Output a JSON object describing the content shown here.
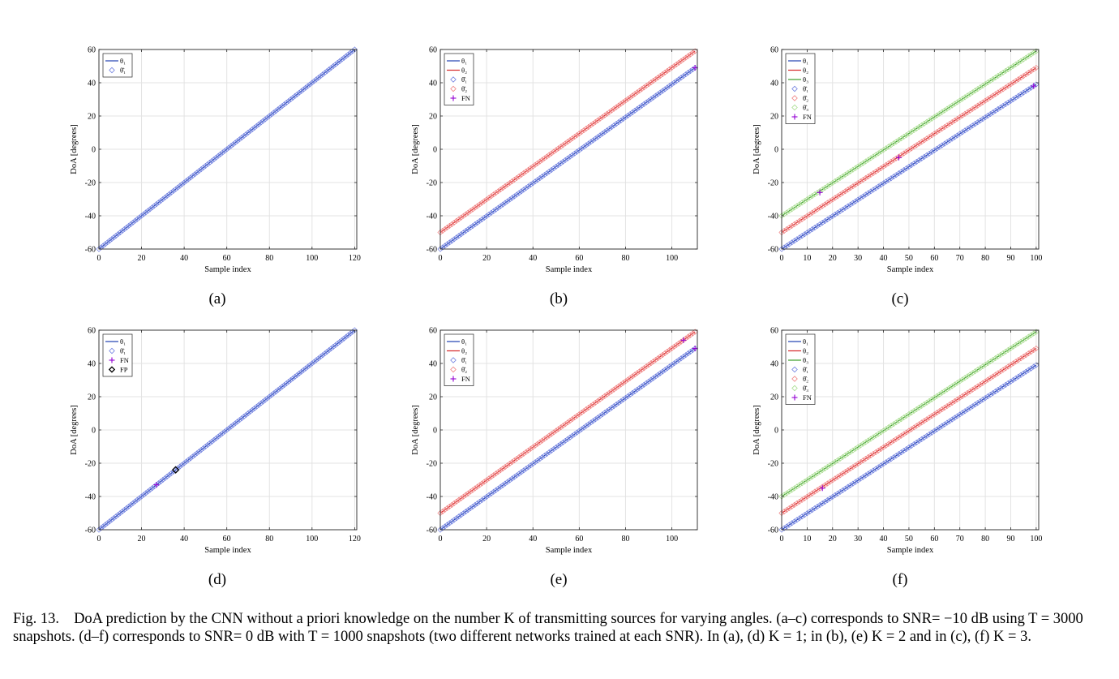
{
  "figure": {
    "caption_label": "Fig. 13.",
    "caption_text": "DoA prediction by the CNN without a priori knowledge on the number K of transmitting sources for varying angles. (a–c) corresponds to SNR= −10 dB using T = 3000 snapshots. (d–f) corresponds to SNR= 0 dB with T = 1000 snapshots (two different networks trained at each SNR). In (a), (d) K = 1; in (b), (e) K = 2 and in (c), (f) K = 3."
  },
  "colors": {
    "theta1": "#1f3fb0",
    "theta2": "#d62728",
    "theta3": "#3c9e2a",
    "est1": "#6f7fe0",
    "est2": "#f08080",
    "est3": "#a6dc8c",
    "fn": "#9400d3",
    "fp": "#000000",
    "grid": "#e3e3e3",
    "axis": "#262626"
  },
  "chart_data": [
    {
      "id": "a",
      "sublabel": "(a)",
      "type": "line",
      "xlabel": "Sample index",
      "ylabel": "DoA [degrees]",
      "xlim": [
        0,
        121
      ],
      "ylim": [
        -60,
        60
      ],
      "xticks": [
        0,
        20,
        40,
        60,
        80,
        100,
        120
      ],
      "yticks": [
        -60,
        -40,
        -20,
        0,
        20,
        40,
        60
      ],
      "grid": true,
      "legend_position": "top-left",
      "legend": [
        {
          "label": "θ₁",
          "kind": "line",
          "color": "theta1"
        },
        {
          "label": "θ̂₁",
          "kind": "diamond",
          "color": "est1"
        }
      ],
      "series": [
        {
          "name": "θ₁",
          "kind": "true",
          "color": "theta1",
          "x_start": 0,
          "x_end": 120,
          "y_start": -60,
          "y_end": 60
        },
        {
          "name": "θ̂₁",
          "kind": "estimate",
          "color": "est1",
          "x_start": 0,
          "x_end": 120,
          "y_start": -60,
          "y_end": 60
        }
      ],
      "fn_points": [],
      "fp_points": []
    },
    {
      "id": "b",
      "sublabel": "(b)",
      "type": "line",
      "xlabel": "Sample index",
      "ylabel": "DoA [degrees]",
      "xlim": [
        0,
        111
      ],
      "ylim": [
        -60,
        60
      ],
      "xticks": [
        0,
        20,
        40,
        60,
        80,
        100
      ],
      "yticks": [
        -60,
        -40,
        -20,
        0,
        20,
        40,
        60
      ],
      "grid": true,
      "legend_position": "top-left",
      "legend": [
        {
          "label": "θ₁",
          "kind": "line",
          "color": "theta1"
        },
        {
          "label": "θ₂",
          "kind": "line",
          "color": "theta2"
        },
        {
          "label": "θ̂₁",
          "kind": "diamond",
          "color": "est1"
        },
        {
          "label": "θ̂₂",
          "kind": "diamond",
          "color": "est2"
        },
        {
          "label": "FN",
          "kind": "plus",
          "color": "fn"
        }
      ],
      "series": [
        {
          "name": "θ₁",
          "kind": "true",
          "color": "theta1",
          "x_start": 0,
          "x_end": 110,
          "y_start": -60,
          "y_end": 49
        },
        {
          "name": "θ₂",
          "kind": "true",
          "color": "theta2",
          "x_start": 0,
          "x_end": 110,
          "y_start": -50,
          "y_end": 59
        },
        {
          "name": "θ̂₁",
          "kind": "estimate",
          "color": "est1",
          "x_start": 0,
          "x_end": 110,
          "y_start": -60,
          "y_end": 49
        },
        {
          "name": "θ̂₂",
          "kind": "estimate",
          "color": "est2",
          "x_start": 0,
          "x_end": 110,
          "y_start": -50,
          "y_end": 59
        }
      ],
      "fn_points": [
        [
          110,
          49
        ]
      ],
      "fp_points": []
    },
    {
      "id": "c",
      "sublabel": "(c)",
      "type": "line",
      "xlabel": "Sample index",
      "ylabel": "DoA [degrees]",
      "xlim": [
        0,
        101
      ],
      "ylim": [
        -60,
        60
      ],
      "xticks": [
        0,
        10,
        20,
        30,
        40,
        50,
        60,
        70,
        80,
        90,
        100
      ],
      "yticks": [
        -60,
        -40,
        -20,
        0,
        20,
        40,
        60
      ],
      "grid": true,
      "legend_position": "top-left",
      "legend": [
        {
          "label": "θ₁",
          "kind": "line",
          "color": "theta1"
        },
        {
          "label": "θ₂",
          "kind": "line",
          "color": "theta2"
        },
        {
          "label": "θ₃",
          "kind": "line",
          "color": "theta3"
        },
        {
          "label": "θ̂₁",
          "kind": "diamond",
          "color": "est1"
        },
        {
          "label": "θ̂₂",
          "kind": "diamond",
          "color": "est2"
        },
        {
          "label": "θ̂₃",
          "kind": "diamond",
          "color": "est3"
        },
        {
          "label": "FN",
          "kind": "plus",
          "color": "fn"
        }
      ],
      "series": [
        {
          "name": "θ₁",
          "kind": "true",
          "color": "theta1",
          "x_start": 0,
          "x_end": 100,
          "y_start": -60,
          "y_end": 39
        },
        {
          "name": "θ₂",
          "kind": "true",
          "color": "theta2",
          "x_start": 0,
          "x_end": 100,
          "y_start": -50,
          "y_end": 49
        },
        {
          "name": "θ₃",
          "kind": "true",
          "color": "theta3",
          "x_start": 0,
          "x_end": 100,
          "y_start": -40,
          "y_end": 59
        },
        {
          "name": "θ̂₁",
          "kind": "estimate",
          "color": "est1",
          "x_start": 0,
          "x_end": 100,
          "y_start": -60,
          "y_end": 39
        },
        {
          "name": "θ̂₂",
          "kind": "estimate",
          "color": "est2",
          "x_start": 0,
          "x_end": 100,
          "y_start": -50,
          "y_end": 49
        },
        {
          "name": "θ̂₃",
          "kind": "estimate",
          "color": "est3",
          "x_start": 0,
          "x_end": 100,
          "y_start": -40,
          "y_end": 59
        }
      ],
      "fn_points": [
        [
          15,
          -26
        ],
        [
          46,
          -5
        ],
        [
          99,
          38
        ]
      ],
      "fp_points": []
    },
    {
      "id": "d",
      "sublabel": "(d)",
      "type": "line",
      "xlabel": "Sample index",
      "ylabel": "DoA [degrees]",
      "xlim": [
        0,
        121
      ],
      "ylim": [
        -60,
        60
      ],
      "xticks": [
        0,
        20,
        40,
        60,
        80,
        100,
        120
      ],
      "yticks": [
        -60,
        -40,
        -20,
        0,
        20,
        40,
        60
      ],
      "grid": true,
      "legend_position": "top-left",
      "legend": [
        {
          "label": "θ₁",
          "kind": "line",
          "color": "theta1"
        },
        {
          "label": "θ̂₁",
          "kind": "diamond",
          "color": "est1"
        },
        {
          "label": "FN",
          "kind": "plus",
          "color": "fn"
        },
        {
          "label": "FP",
          "kind": "diamond",
          "color": "fp"
        }
      ],
      "series": [
        {
          "name": "θ₁",
          "kind": "true",
          "color": "theta1",
          "x_start": 0,
          "x_end": 120,
          "y_start": -60,
          "y_end": 60
        },
        {
          "name": "θ̂₁",
          "kind": "estimate",
          "color": "est1",
          "x_start": 0,
          "x_end": 120,
          "y_start": -60,
          "y_end": 60
        }
      ],
      "fn_points": [
        [
          27,
          -33
        ]
      ],
      "fp_points": [
        [
          36,
          -24
        ]
      ]
    },
    {
      "id": "e",
      "sublabel": "(e)",
      "type": "line",
      "xlabel": "Sample index",
      "ylabel": "DoA [degrees]",
      "xlim": [
        0,
        111
      ],
      "ylim": [
        -60,
        60
      ],
      "xticks": [
        0,
        20,
        40,
        60,
        80,
        100
      ],
      "yticks": [
        -60,
        -40,
        -20,
        0,
        20,
        40,
        60
      ],
      "grid": true,
      "legend_position": "top-left",
      "legend": [
        {
          "label": "θ₁",
          "kind": "line",
          "color": "theta1"
        },
        {
          "label": "θ₂",
          "kind": "line",
          "color": "theta2"
        },
        {
          "label": "θ̂₁",
          "kind": "diamond",
          "color": "est1"
        },
        {
          "label": "θ̂₂",
          "kind": "diamond",
          "color": "est2"
        },
        {
          "label": "FN",
          "kind": "plus",
          "color": "fn"
        }
      ],
      "series": [
        {
          "name": "θ₁",
          "kind": "true",
          "color": "theta1",
          "x_start": 0,
          "x_end": 110,
          "y_start": -60,
          "y_end": 49
        },
        {
          "name": "θ₂",
          "kind": "true",
          "color": "theta2",
          "x_start": 0,
          "x_end": 110,
          "y_start": -50,
          "y_end": 59
        },
        {
          "name": "θ̂₁",
          "kind": "estimate",
          "color": "est1",
          "x_start": 0,
          "x_end": 110,
          "y_start": -60,
          "y_end": 49
        },
        {
          "name": "θ̂₂",
          "kind": "estimate",
          "color": "est2",
          "x_start": 0,
          "x_end": 110,
          "y_start": -50,
          "y_end": 59
        }
      ],
      "fn_points": [
        [
          105,
          54
        ],
        [
          110,
          49
        ]
      ],
      "fp_points": []
    },
    {
      "id": "f",
      "sublabel": "(f)",
      "type": "line",
      "xlabel": "Sample index",
      "ylabel": "DoA [degrees]",
      "xlim": [
        0,
        101
      ],
      "ylim": [
        -60,
        60
      ],
      "xticks": [
        0,
        10,
        20,
        30,
        40,
        50,
        60,
        70,
        80,
        90,
        100
      ],
      "yticks": [
        -60,
        -40,
        -20,
        0,
        20,
        40,
        60
      ],
      "grid": true,
      "legend_position": "top-left",
      "legend": [
        {
          "label": "θ₁",
          "kind": "line",
          "color": "theta1"
        },
        {
          "label": "θ₂",
          "kind": "line",
          "color": "theta2"
        },
        {
          "label": "θ₃",
          "kind": "line",
          "color": "theta3"
        },
        {
          "label": "θ̂₁",
          "kind": "diamond",
          "color": "est1"
        },
        {
          "label": "θ̂₂",
          "kind": "diamond",
          "color": "est2"
        },
        {
          "label": "θ̂₃",
          "kind": "diamond",
          "color": "est3"
        },
        {
          "label": "FN",
          "kind": "plus",
          "color": "fn"
        }
      ],
      "series": [
        {
          "name": "θ₁",
          "kind": "true",
          "color": "theta1",
          "x_start": 0,
          "x_end": 100,
          "y_start": -60,
          "y_end": 39
        },
        {
          "name": "θ₂",
          "kind": "true",
          "color": "theta2",
          "x_start": 0,
          "x_end": 100,
          "y_start": -50,
          "y_end": 49
        },
        {
          "name": "θ₃",
          "kind": "true",
          "color": "theta3",
          "x_start": 0,
          "x_end": 100,
          "y_start": -40,
          "y_end": 59
        },
        {
          "name": "θ̂₁",
          "kind": "estimate",
          "color": "est1",
          "x_start": 0,
          "x_end": 100,
          "y_start": -60,
          "y_end": 39
        },
        {
          "name": "θ̂₂",
          "kind": "estimate",
          "color": "est2",
          "x_start": 0,
          "x_end": 100,
          "y_start": -50,
          "y_end": 49
        },
        {
          "name": "θ̂₃",
          "kind": "estimate",
          "color": "est3",
          "x_start": 0,
          "x_end": 100,
          "y_start": -40,
          "y_end": 59
        }
      ],
      "fn_points": [
        [
          16,
          -35
        ]
      ],
      "fp_points": []
    }
  ]
}
